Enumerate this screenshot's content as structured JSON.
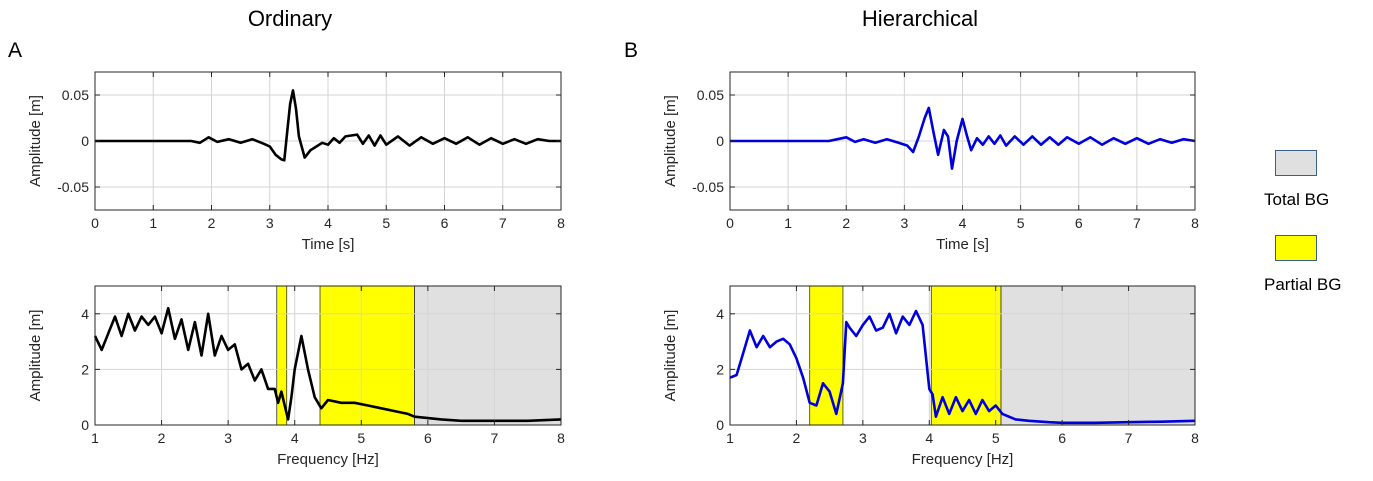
{
  "titles": {
    "left": "Ordinary",
    "right": "Hierarchical"
  },
  "panel_labels": {
    "left": "A",
    "right": "B"
  },
  "legend": {
    "total_bg": {
      "label": "Total BG",
      "color": "#e0e0e0"
    },
    "partial_bg": {
      "label": "Partial BG",
      "color": "#ffff00"
    }
  },
  "chart_data": [
    {
      "id": "ordinary-time",
      "type": "line",
      "xlabel": "Time [s]",
      "ylabel": "Amplitude [m]",
      "xlim": [
        0,
        8
      ],
      "ylim": [
        -0.075,
        0.075
      ],
      "xticks": [
        0,
        1,
        2,
        3,
        4,
        5,
        6,
        7,
        8
      ],
      "yticks": [
        -0.05,
        0,
        0.05
      ],
      "yticklabels": [
        "-0.05",
        "0",
        "0.05"
      ],
      "grid": true,
      "series": [
        {
          "color": "#000000",
          "x": [
            0,
            1.65,
            1.8,
            1.95,
            2.1,
            2.3,
            2.5,
            2.7,
            2.9,
            3.0,
            3.1,
            3.2,
            3.25,
            3.3,
            3.35,
            3.4,
            3.45,
            3.5,
            3.6,
            3.7,
            3.8,
            3.9,
            4.0,
            4.1,
            4.2,
            4.3,
            4.4,
            4.5,
            4.6,
            4.7,
            4.8,
            4.9,
            5.0,
            5.2,
            5.4,
            5.6,
            5.8,
            6.0,
            6.2,
            6.4,
            6.6,
            6.8,
            7.0,
            7.2,
            7.4,
            7.6,
            7.8,
            8.0
          ],
          "y": [
            0,
            0,
            -0.002,
            0.004,
            -0.001,
            0.002,
            -0.002,
            0.002,
            -0.003,
            -0.006,
            -0.015,
            -0.02,
            -0.021,
            0.01,
            0.04,
            0.055,
            0.035,
            0.005,
            -0.018,
            -0.01,
            -0.006,
            -0.002,
            -0.004,
            0.003,
            -0.002,
            0.005,
            0.006,
            0.007,
            -0.003,
            0.006,
            -0.005,
            0.006,
            -0.004,
            0.005,
            -0.005,
            0.004,
            -0.003,
            0.003,
            -0.003,
            0.004,
            -0.004,
            0.003,
            -0.003,
            0.002,
            -0.003,
            0.002,
            0,
            0
          ]
        }
      ]
    },
    {
      "id": "ordinary-freq",
      "type": "line",
      "xlabel": "Frequency [Hz]",
      "ylabel": "Amplitude [m]",
      "xlim": [
        1,
        8
      ],
      "ylim": [
        0,
        5
      ],
      "xticks": [
        1,
        2,
        3,
        4,
        5,
        6,
        7,
        8
      ],
      "yticks": [
        0,
        2,
        4
      ],
      "yticklabels": [
        "0",
        "2",
        "4"
      ],
      "grid": true,
      "bands": [
        {
          "kind": "partial",
          "x": [
            3.73,
            3.88
          ]
        },
        {
          "kind": "partial",
          "x": [
            4.38,
            5.8
          ]
        },
        {
          "kind": "total",
          "x": [
            5.8,
            8.0
          ]
        }
      ],
      "series": [
        {
          "color": "#000000",
          "x": [
            1.0,
            1.1,
            1.2,
            1.3,
            1.4,
            1.5,
            1.6,
            1.7,
            1.8,
            1.9,
            2.0,
            2.1,
            2.2,
            2.3,
            2.4,
            2.5,
            2.6,
            2.7,
            2.8,
            2.9,
            3.0,
            3.1,
            3.2,
            3.3,
            3.4,
            3.5,
            3.6,
            3.7,
            3.75,
            3.8,
            3.85,
            3.9,
            3.95,
            4.0,
            4.1,
            4.2,
            4.3,
            4.4,
            4.5,
            4.7,
            4.9,
            5.1,
            5.3,
            5.5,
            5.7,
            5.8,
            6.0,
            6.2,
            6.5,
            7.0,
            7.5,
            8.0
          ],
          "y": [
            3.2,
            2.7,
            3.3,
            3.9,
            3.2,
            4.0,
            3.4,
            3.9,
            3.6,
            3.9,
            3.3,
            4.2,
            3.1,
            3.8,
            2.7,
            3.7,
            2.5,
            4.0,
            2.5,
            3.2,
            2.7,
            2.9,
            2.0,
            2.2,
            1.6,
            2.0,
            1.3,
            1.3,
            0.8,
            1.2,
            0.7,
            0.2,
            1.0,
            2.0,
            3.2,
            2.0,
            1.0,
            0.6,
            0.9,
            0.8,
            0.8,
            0.7,
            0.6,
            0.5,
            0.4,
            0.3,
            0.25,
            0.2,
            0.15,
            0.15,
            0.15,
            0.2
          ]
        }
      ]
    },
    {
      "id": "hierarchical-time",
      "type": "line",
      "xlabel": "Time [s]",
      "ylabel": "Amplitude [m]",
      "xlim": [
        0,
        8
      ],
      "ylim": [
        -0.075,
        0.075
      ],
      "xticks": [
        0,
        1,
        2,
        3,
        4,
        5,
        6,
        7,
        8
      ],
      "yticks": [
        -0.05,
        0,
        0.05
      ],
      "yticklabels": [
        "-0.05",
        "0",
        "0.05"
      ],
      "grid": true,
      "series": [
        {
          "color": "#0000dd",
          "x": [
            0,
            1.7,
            1.85,
            2.0,
            2.15,
            2.3,
            2.5,
            2.7,
            2.9,
            3.05,
            3.15,
            3.25,
            3.35,
            3.42,
            3.5,
            3.58,
            3.68,
            3.75,
            3.82,
            3.9,
            4.0,
            4.08,
            4.15,
            4.25,
            4.35,
            4.45,
            4.55,
            4.65,
            4.75,
            4.9,
            5.05,
            5.2,
            5.35,
            5.5,
            5.65,
            5.8,
            6.0,
            6.2,
            6.4,
            6.6,
            6.8,
            7.0,
            7.2,
            7.4,
            7.6,
            7.8,
            8.0
          ],
          "y": [
            0,
            0,
            0.002,
            0.004,
            -0.001,
            0.002,
            -0.002,
            0.002,
            -0.002,
            -0.005,
            -0.012,
            0.005,
            0.025,
            0.036,
            0.01,
            -0.015,
            0.012,
            0.005,
            -0.03,
            0.0,
            0.024,
            0.005,
            -0.01,
            0.003,
            -0.004,
            0.005,
            -0.003,
            0.006,
            -0.005,
            0.005,
            -0.004,
            0.005,
            -0.004,
            0.004,
            -0.004,
            0.004,
            -0.003,
            0.004,
            -0.004,
            0.003,
            -0.003,
            0.003,
            -0.003,
            0.002,
            -0.002,
            0.002,
            0
          ]
        }
      ]
    },
    {
      "id": "hierarchical-freq",
      "type": "line",
      "xlabel": "Frequency [Hz]",
      "ylabel": "Amplitude [m]",
      "xlim": [
        1,
        8
      ],
      "ylim": [
        0,
        5
      ],
      "xticks": [
        1,
        2,
        3,
        4,
        5,
        6,
        7,
        8
      ],
      "yticks": [
        0,
        2,
        4
      ],
      "yticklabels": [
        "0",
        "2",
        "4"
      ],
      "grid": true,
      "bands": [
        {
          "kind": "partial",
          "x": [
            2.2,
            2.7
          ]
        },
        {
          "kind": "partial",
          "x": [
            4.03,
            5.08
          ]
        },
        {
          "kind": "total",
          "x": [
            5.08,
            8.0
          ]
        }
      ],
      "series": [
        {
          "color": "#0000dd",
          "x": [
            1.0,
            1.1,
            1.2,
            1.3,
            1.4,
            1.5,
            1.6,
            1.7,
            1.8,
            1.9,
            2.0,
            2.1,
            2.2,
            2.3,
            2.4,
            2.5,
            2.6,
            2.7,
            2.75,
            2.8,
            2.9,
            3.0,
            3.1,
            3.2,
            3.3,
            3.4,
            3.5,
            3.6,
            3.7,
            3.8,
            3.9,
            4.0,
            4.05,
            4.1,
            4.2,
            4.3,
            4.4,
            4.5,
            4.6,
            4.7,
            4.8,
            4.9,
            5.0,
            5.1,
            5.3,
            5.5,
            5.8,
            6.0,
            6.5,
            7.0,
            7.5,
            8.0
          ],
          "y": [
            1.7,
            1.8,
            2.6,
            3.4,
            2.8,
            3.2,
            2.8,
            3.0,
            3.1,
            2.9,
            2.4,
            1.7,
            0.8,
            0.7,
            1.5,
            1.2,
            0.4,
            1.5,
            3.7,
            3.5,
            3.2,
            3.6,
            3.9,
            3.4,
            3.5,
            4.0,
            3.3,
            3.9,
            3.6,
            4.1,
            3.6,
            1.3,
            1.1,
            0.3,
            1.0,
            0.4,
            1.0,
            0.5,
            0.9,
            0.4,
            0.9,
            0.5,
            0.7,
            0.4,
            0.2,
            0.15,
            0.1,
            0.08,
            0.08,
            0.1,
            0.12,
            0.15
          ]
        }
      ]
    }
  ]
}
